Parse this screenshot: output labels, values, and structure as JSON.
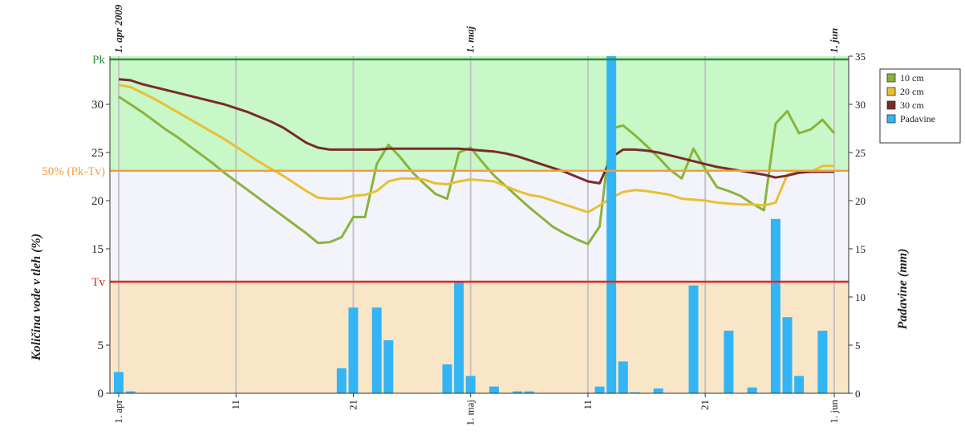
{
  "chart_data": {
    "type": "line",
    "y_title": "Količina vode v tleh (%)",
    "y2_title": "Padavine (mm)",
    "x": [
      "2009-04-01",
      "2009-04-02",
      "2009-04-03",
      "2009-04-04",
      "2009-04-05",
      "2009-04-06",
      "2009-04-07",
      "2009-04-08",
      "2009-04-09",
      "2009-04-10",
      "2009-04-11",
      "2009-04-12",
      "2009-04-13",
      "2009-04-14",
      "2009-04-15",
      "2009-04-16",
      "2009-04-17",
      "2009-04-18",
      "2009-04-19",
      "2009-04-20",
      "2009-04-21",
      "2009-04-22",
      "2009-04-23",
      "2009-04-24",
      "2009-04-25",
      "2009-04-26",
      "2009-04-27",
      "2009-04-28",
      "2009-04-29",
      "2009-04-30",
      "2009-05-01",
      "2009-05-02",
      "2009-05-03",
      "2009-05-04",
      "2009-05-05",
      "2009-05-06",
      "2009-05-07",
      "2009-05-08",
      "2009-05-09",
      "2009-05-10",
      "2009-05-11",
      "2009-05-12",
      "2009-05-13",
      "2009-05-14",
      "2009-05-15",
      "2009-05-16",
      "2009-05-17",
      "2009-05-18",
      "2009-05-19",
      "2009-05-20",
      "2009-05-21",
      "2009-05-22",
      "2009-05-23",
      "2009-05-24",
      "2009-05-25",
      "2009-05-26",
      "2009-05-27",
      "2009-05-28",
      "2009-05-29",
      "2009-05-30",
      "2009-05-31",
      "2009-06-01"
    ],
    "xlim": [
      "2009-04-01",
      "2009-06-01"
    ],
    "xticks": [
      {
        "value": "2009-04-01",
        "label": "1. apr"
      },
      {
        "value": "2009-04-11",
        "label": "11"
      },
      {
        "value": "2009-04-21",
        "label": "21"
      },
      {
        "value": "2009-05-01",
        "label": "1. maj"
      },
      {
        "value": "2009-05-11",
        "label": "11"
      },
      {
        "value": "2009-05-21",
        "label": "21"
      },
      {
        "value": "2009-06-01",
        "label": "1. jun"
      }
    ],
    "top_labels": [
      {
        "value": "2009-04-01",
        "label": "1. apr 2009"
      },
      {
        "value": "2009-05-01",
        "label": "1. maj"
      },
      {
        "value": "2009-06-01",
        "label": "1. jun"
      }
    ],
    "ylim": [
      0,
      35
    ],
    "yticks": [
      0,
      5,
      15,
      20,
      25,
      30
    ],
    "y2lim": [
      0,
      35
    ],
    "y2ticks": [
      0,
      5,
      10,
      15,
      20,
      25,
      30,
      35
    ],
    "grid": true,
    "thresholds": [
      {
        "label": "Pk",
        "value": 34.67,
        "color": "#2e8b3e"
      },
      {
        "label": "50% (Pk-Tv)",
        "value": 23.1,
        "color": "#f0a040"
      },
      {
        "label": "Tv",
        "value": 11.58,
        "color": "#e82020"
      }
    ],
    "band_colors": [
      "#c8f7c8",
      "#f3f3fb",
      "#f9e6c7"
    ],
    "legend": "right",
    "series": [
      {
        "name": "10 cm",
        "color": "#8ab33a",
        "values": [
          30.8,
          30.0,
          29.2,
          28.3,
          27.4,
          26.6,
          25.7,
          24.8,
          23.9,
          22.9,
          22.0,
          21.1,
          20.2,
          19.3,
          18.4,
          17.5,
          16.6,
          15.6,
          15.7,
          16.2,
          18.3,
          18.3,
          23.8,
          25.8,
          24.5,
          23.0,
          21.8,
          20.7,
          20.2,
          25.0,
          25.5,
          24.0,
          22.6,
          21.5,
          20.4,
          19.3,
          18.3,
          17.3,
          16.6,
          16.0,
          15.5,
          17.3,
          27.5,
          27.8,
          26.8,
          25.7,
          24.5,
          23.2,
          22.3,
          25.4,
          23.3,
          21.4,
          21.0,
          20.5,
          19.7,
          19.0,
          28.0,
          29.3,
          27.0,
          27.4,
          28.4,
          27.0
        ]
      },
      {
        "name": "20 cm",
        "color": "#e8c030",
        "values": [
          32.0,
          31.8,
          31.2,
          30.6,
          29.9,
          29.2,
          28.5,
          27.8,
          27.1,
          26.4,
          25.6,
          24.8,
          24.0,
          23.3,
          22.6,
          21.8,
          21.0,
          20.3,
          20.2,
          20.2,
          20.5,
          20.6,
          21.0,
          22.0,
          22.3,
          22.3,
          22.2,
          21.8,
          21.7,
          22.0,
          22.2,
          22.1,
          22.0,
          21.5,
          21.0,
          20.6,
          20.4,
          20.0,
          19.6,
          19.2,
          18.8,
          19.5,
          20.3,
          20.9,
          21.1,
          21.0,
          20.8,
          20.6,
          20.2,
          20.1,
          20.0,
          19.8,
          19.7,
          19.6,
          19.6,
          19.5,
          19.8,
          22.7,
          23.0,
          23.0,
          23.6,
          23.6
        ]
      },
      {
        "name": "30 cm",
        "color": "#7a2a2a",
        "values": [
          32.6,
          32.5,
          32.1,
          31.8,
          31.5,
          31.2,
          30.9,
          30.6,
          30.3,
          30.0,
          29.6,
          29.2,
          28.7,
          28.2,
          27.6,
          26.8,
          26.0,
          25.5,
          25.3,
          25.3,
          25.3,
          25.3,
          25.3,
          25.4,
          25.4,
          25.4,
          25.4,
          25.4,
          25.4,
          25.4,
          25.3,
          25.2,
          25.1,
          24.9,
          24.6,
          24.2,
          23.8,
          23.4,
          23.0,
          22.5,
          22.0,
          21.8,
          24.5,
          25.3,
          25.3,
          25.2,
          25.0,
          24.7,
          24.4,
          24.1,
          23.8,
          23.5,
          23.3,
          23.1,
          22.9,
          22.7,
          22.4,
          22.6,
          22.9,
          23.0,
          23.0,
          23.0
        ]
      },
      {
        "name": "Padavine",
        "color": "#33b5f5",
        "type": "bar",
        "axis": "y2",
        "values": [
          2.2,
          0.2,
          0,
          0,
          0,
          0,
          0,
          0,
          0,
          0,
          0,
          0,
          0,
          0,
          0,
          0,
          0,
          0,
          0,
          2.6,
          8.9,
          0,
          8.9,
          5.5,
          0,
          0,
          0,
          0,
          3.0,
          11.6,
          1.8,
          0,
          0.7,
          0,
          0.2,
          0.2,
          0,
          0,
          0,
          0,
          0,
          0.7,
          35,
          3.3,
          0.1,
          0,
          0.5,
          0,
          0,
          11.2,
          0,
          0,
          6.5,
          0,
          0.6,
          0,
          18.1,
          7.9,
          1.8,
          0,
          6.5,
          0
        ]
      }
    ]
  }
}
